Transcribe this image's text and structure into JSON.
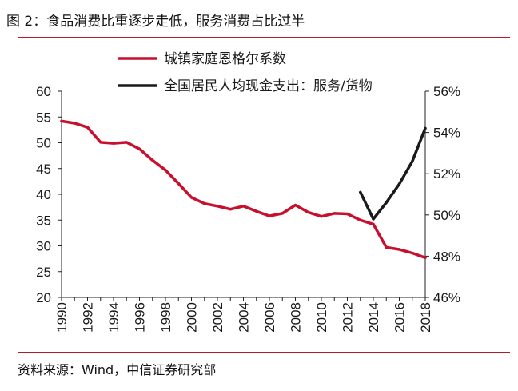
{
  "figure": {
    "title": "图 2：食品消费比重逐步走低，服务消费占比过半",
    "source": "资料来源：Wind，中信证券研究部"
  },
  "chart_data": {
    "type": "line",
    "x": [
      1990,
      1991,
      1992,
      1993,
      1994,
      1995,
      1996,
      1997,
      1998,
      1999,
      2000,
      2001,
      2002,
      2003,
      2004,
      2005,
      2006,
      2007,
      2008,
      2009,
      2010,
      2011,
      2012,
      2013,
      2014,
      2015,
      2016,
      2017,
      2018
    ],
    "xticks": [
      "1990",
      "1992",
      "1994",
      "1996",
      "1998",
      "2000",
      "2002",
      "2004",
      "2006",
      "2008",
      "2010",
      "2012",
      "2014",
      "2016",
      "2018"
    ],
    "ylim": [
      20,
      60
    ],
    "yticks": [
      "20",
      "25",
      "30",
      "35",
      "40",
      "45",
      "50",
      "55",
      "60"
    ],
    "y2lim": [
      0.46,
      0.56
    ],
    "y2ticks": [
      "46%",
      "48%",
      "50%",
      "52%",
      "54%",
      "56%"
    ],
    "grid": false,
    "legend_position": "top",
    "series": [
      {
        "name": "城镇家庭恩格尔系数",
        "axis": "left",
        "color": "#c8102e",
        "x": [
          1990,
          1991,
          1992,
          1993,
          1994,
          1995,
          1996,
          1997,
          1998,
          1999,
          2000,
          2001,
          2002,
          2003,
          2004,
          2005,
          2006,
          2007,
          2008,
          2009,
          2010,
          2011,
          2012,
          2013,
          2014,
          2015,
          2016,
          2017,
          2018
        ],
        "values": [
          54.2,
          53.8,
          53.0,
          50.1,
          49.9,
          50.1,
          48.8,
          46.6,
          44.7,
          42.1,
          39.4,
          38.2,
          37.7,
          37.1,
          37.7,
          36.7,
          35.8,
          36.3,
          37.9,
          36.5,
          35.7,
          36.3,
          36.2,
          35.0,
          34.2,
          29.7,
          29.3,
          28.6,
          27.7
        ]
      },
      {
        "name": "全国居民人均现金支出：服务/货物",
        "axis": "right",
        "color": "#1a1a1a",
        "x": [
          2013,
          2014,
          2015,
          2016,
          2017,
          2018
        ],
        "values": [
          0.511,
          0.498,
          0.506,
          0.515,
          0.526,
          0.542
        ]
      }
    ]
  }
}
